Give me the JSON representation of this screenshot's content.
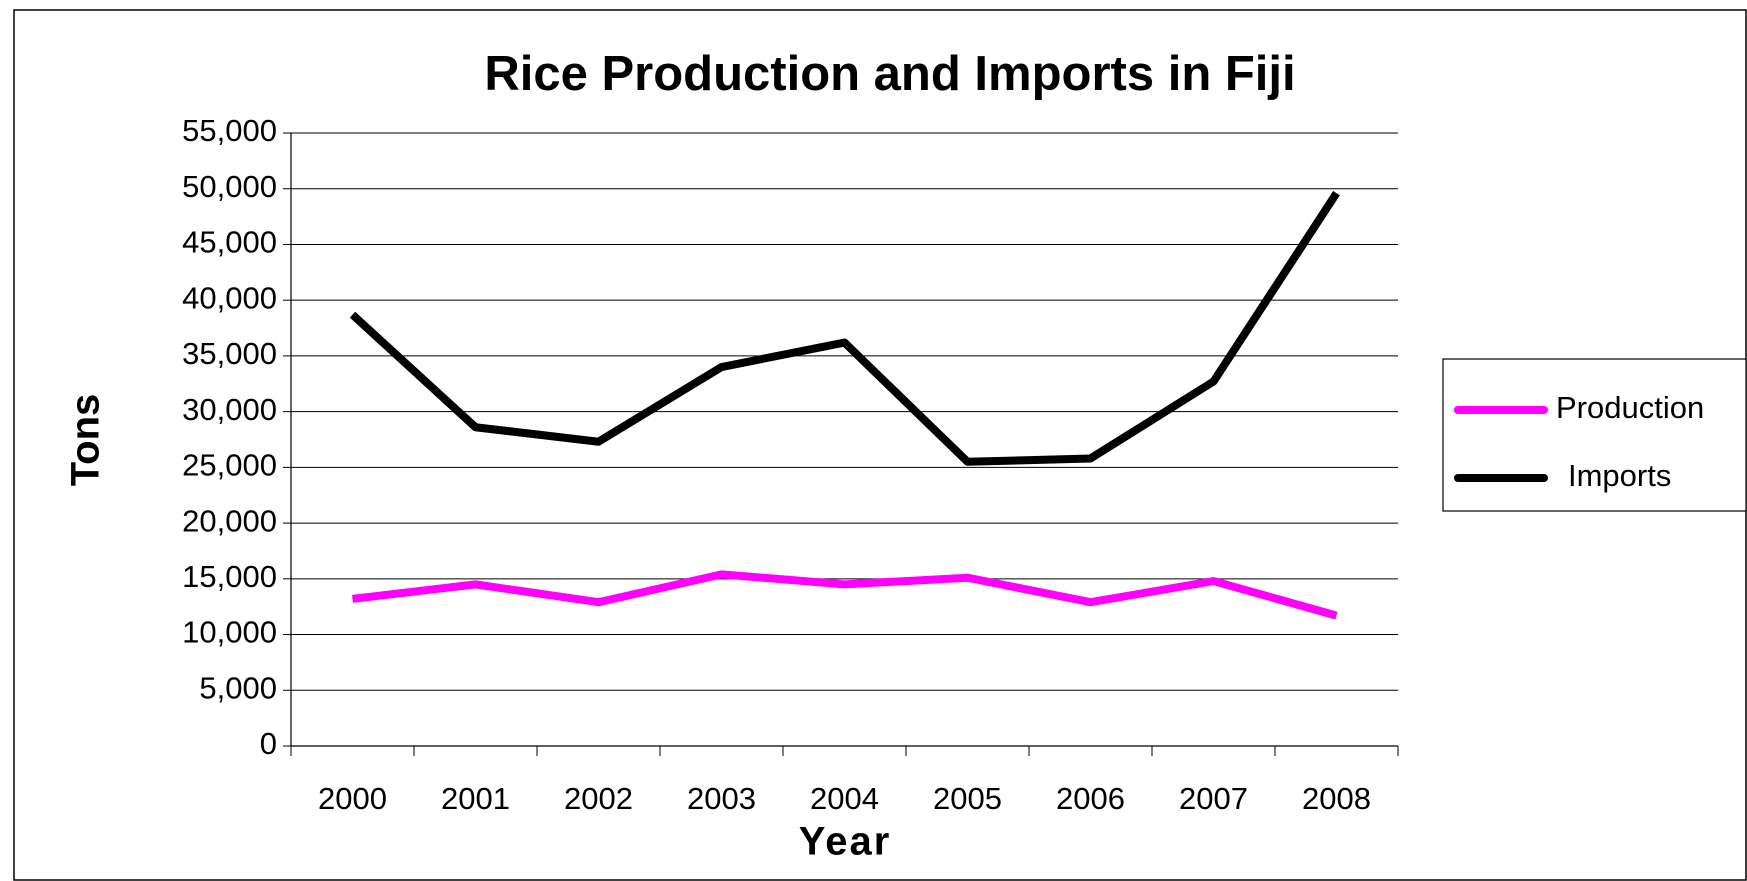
{
  "chart_data": {
    "type": "line",
    "title": "Rice Production and Imports in Fiji",
    "x_label": "Year",
    "y_label": "Tons",
    "categories": [
      "2000",
      "2001",
      "2002",
      "2003",
      "2004",
      "2005",
      "2006",
      "2007",
      "2008"
    ],
    "series": [
      {
        "name": "Production",
        "color": "#ff00ff",
        "values": [
          13200,
          14500,
          12900,
          15400,
          14500,
          15100,
          12900,
          14800,
          11700
        ]
      },
      {
        "name": "Imports",
        "color": "#000000",
        "values": [
          38700,
          28600,
          27300,
          34000,
          36200,
          25500,
          25800,
          32700,
          49600
        ]
      }
    ],
    "ylim": [
      0,
      55000
    ],
    "yticks": [
      0,
      {
        "value": 5000,
        "label": "5,000"
      },
      {
        "value": 10000,
        "label": "10,000"
      },
      {
        "value": 15000,
        "label": "15,000"
      },
      {
        "value": 20000,
        "label": "20,000"
      },
      {
        "value": 25000,
        "label": "25,000"
      },
      {
        "value": 30000,
        "label": "30,000"
      },
      {
        "value": 35000,
        "label": "35,000"
      },
      {
        "value": 40000,
        "label": "40,000"
      },
      {
        "value": 45000,
        "label": "45,000"
      },
      {
        "value": 50000,
        "label": "50,000"
      },
      {
        "value": 55000,
        "label": "55,000"
      }
    ],
    "grid": true,
    "legend": "right"
  }
}
